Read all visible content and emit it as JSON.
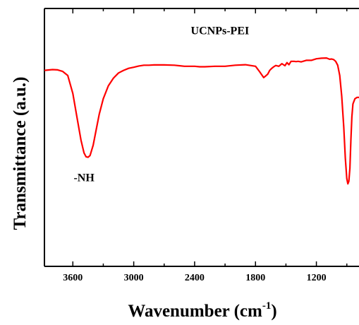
{
  "chart_data": {
    "type": "line",
    "title": "",
    "xlabel": "Wavenumber (cm",
    "xlabel_sup": "-1",
    "xlabel_end": ")",
    "ylabel": "Transmittance (a.u.)",
    "x_reversed": true,
    "xlim": [
      3880,
      780
    ],
    "ylim": [
      0,
      1
    ],
    "x_ticks": [
      3600,
      3000,
      2400,
      1800,
      1200
    ],
    "x_minor_ticks": [
      3900,
      3300,
      2700,
      2100,
      1500,
      900
    ],
    "y_ticks_shown": false,
    "grid": false,
    "series": [
      {
        "name": "UCNPs-PEI",
        "color": "#ff0000",
        "x": [
          3880,
          3800,
          3750,
          3700,
          3650,
          3600,
          3560,
          3520,
          3490,
          3470,
          3450,
          3430,
          3400,
          3370,
          3340,
          3300,
          3250,
          3200,
          3150,
          3100,
          3050,
          3000,
          2950,
          2900,
          2850,
          2800,
          2700,
          2600,
          2500,
          2400,
          2350,
          2300,
          2200,
          2100,
          2000,
          1900,
          1800,
          1760,
          1720,
          1700,
          1680,
          1660,
          1640,
          1620,
          1600,
          1570,
          1540,
          1510,
          1490,
          1470,
          1450,
          1420,
          1400,
          1380,
          1350,
          1300,
          1250,
          1200,
          1150,
          1100,
          1070,
          1050,
          1030,
          1010,
          990,
          970,
          950,
          930,
          915,
          900,
          890,
          880,
          870,
          860,
          850,
          840,
          820,
          800,
          780
        ],
        "y": [
          0.76,
          0.763,
          0.762,
          0.756,
          0.74,
          0.67,
          0.58,
          0.49,
          0.44,
          0.425,
          0.423,
          0.43,
          0.47,
          0.53,
          0.59,
          0.65,
          0.7,
          0.73,
          0.75,
          0.76,
          0.768,
          0.772,
          0.777,
          0.78,
          0.78,
          0.781,
          0.781,
          0.78,
          0.776,
          0.776,
          0.774,
          0.774,
          0.776,
          0.776,
          0.78,
          0.782,
          0.776,
          0.755,
          0.732,
          0.738,
          0.745,
          0.76,
          0.768,
          0.774,
          0.779,
          0.776,
          0.786,
          0.778,
          0.79,
          0.782,
          0.795,
          0.795,
          0.794,
          0.795,
          0.793,
          0.799,
          0.799,
          0.805,
          0.807,
          0.808,
          0.803,
          0.804,
          0.802,
          0.795,
          0.78,
          0.74,
          0.66,
          0.54,
          0.42,
          0.34,
          0.32,
          0.33,
          0.38,
          0.49,
          0.58,
          0.63,
          0.65,
          0.655,
          0.655
        ]
      }
    ],
    "annotations": [
      {
        "text": "UCNPs-PEI",
        "x": 2150,
        "y": 0.9
      },
      {
        "text": "-NH",
        "x": 3490,
        "y": 0.33
      }
    ]
  }
}
